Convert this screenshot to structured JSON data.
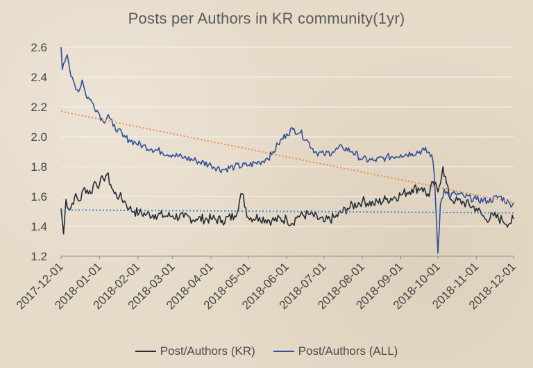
{
  "chart_data": {
    "type": "line",
    "title": "Posts per Authors in KR community(1yr)",
    "xlabel": "",
    "ylabel": "",
    "ylim": [
      1.2,
      2.6
    ],
    "yticks": [
      "1.2",
      "1.4",
      "1.6",
      "1.8",
      "2.0",
      "2.2",
      "2.4",
      "2.6"
    ],
    "xlim": [
      "2017-12-01",
      "2018-12-01"
    ],
    "xticks": [
      "2017-12-01",
      "2018-01-01",
      "2018-02-01",
      "2018-03-01",
      "2018-04-01",
      "2018-05-01",
      "2018-06-01",
      "2018-07-01",
      "2018-08-01",
      "2018-09-01",
      "2018-10-01",
      "2018-11-01",
      "2018-12-01"
    ],
    "grid": true,
    "legend_position": "bottom",
    "colors": {
      "kr": "#1f2a36",
      "all": "#2f4f9a",
      "kr_trend": "#3a86d4",
      "all_trend": "#e8894a",
      "grid": "#f4efe6",
      "axis": "#8a8a8a"
    },
    "series": [
      {
        "name": "Post/Authors (KR)",
        "color": "#1f2a36",
        "x": [
          "2017-12-01",
          "2017-12-03",
          "2017-12-05",
          "2017-12-08",
          "2017-12-12",
          "2017-12-16",
          "2017-12-20",
          "2017-12-25",
          "2017-12-28",
          "2018-01-01",
          "2018-01-04",
          "2018-01-07",
          "2018-01-10",
          "2018-01-13",
          "2018-01-17",
          "2018-01-21",
          "2018-01-25",
          "2018-01-29",
          "2018-02-02",
          "2018-02-08",
          "2018-02-15",
          "2018-02-22",
          "2018-03-01",
          "2018-03-10",
          "2018-03-20",
          "2018-04-01",
          "2018-04-10",
          "2018-04-20",
          "2018-04-26",
          "2018-05-01",
          "2018-05-10",
          "2018-05-20",
          "2018-06-01",
          "2018-06-05",
          "2018-06-10",
          "2018-06-20",
          "2018-07-01",
          "2018-07-10",
          "2018-07-20",
          "2018-08-01",
          "2018-08-10",
          "2018-08-20",
          "2018-09-01",
          "2018-09-10",
          "2018-09-18",
          "2018-09-24",
          "2018-09-27",
          "2018-10-01",
          "2018-10-05",
          "2018-10-10",
          "2018-10-15",
          "2018-10-22",
          "2018-11-01",
          "2018-11-08",
          "2018-11-15",
          "2018-11-22",
          "2018-11-28",
          "2018-12-01"
        ],
        "y": [
          1.52,
          1.35,
          1.58,
          1.51,
          1.6,
          1.57,
          1.66,
          1.62,
          1.7,
          1.68,
          1.72,
          1.75,
          1.68,
          1.62,
          1.6,
          1.57,
          1.52,
          1.5,
          1.49,
          1.48,
          1.48,
          1.47,
          1.47,
          1.46,
          1.45,
          1.45,
          1.44,
          1.47,
          1.62,
          1.46,
          1.46,
          1.44,
          1.45,
          1.42,
          1.47,
          1.48,
          1.43,
          1.46,
          1.52,
          1.57,
          1.55,
          1.58,
          1.61,
          1.65,
          1.66,
          1.6,
          1.7,
          1.63,
          1.8,
          1.6,
          1.57,
          1.56,
          1.52,
          1.45,
          1.47,
          1.44,
          1.42,
          1.45
        ]
      },
      {
        "name": "Post/Authors (ALL)",
        "color": "#2f4f9a",
        "x": [
          "2017-12-01",
          "2017-12-02",
          "2017-12-04",
          "2017-12-06",
          "2017-12-08",
          "2017-12-10",
          "2017-12-12",
          "2017-12-15",
          "2017-12-18",
          "2017-12-21",
          "2017-12-24",
          "2017-12-27",
          "2018-01-01",
          "2018-01-04",
          "2018-01-08",
          "2018-01-12",
          "2018-01-16",
          "2018-01-20",
          "2018-01-25",
          "2018-01-30",
          "2018-02-05",
          "2018-02-12",
          "2018-02-20",
          "2018-03-01",
          "2018-03-10",
          "2018-03-20",
          "2018-04-01",
          "2018-04-10",
          "2018-04-20",
          "2018-05-01",
          "2018-05-10",
          "2018-05-15",
          "2018-05-20",
          "2018-05-25",
          "2018-06-01",
          "2018-06-06",
          "2018-06-12",
          "2018-06-18",
          "2018-06-24",
          "2018-07-01",
          "2018-07-08",
          "2018-07-16",
          "2018-07-24",
          "2018-08-01",
          "2018-08-10",
          "2018-08-20",
          "2018-09-01",
          "2018-09-10",
          "2018-09-20",
          "2018-09-26",
          "2018-09-28",
          "2018-09-30",
          "2018-10-01",
          "2018-10-03",
          "2018-10-06",
          "2018-10-10",
          "2018-10-15",
          "2018-10-22",
          "2018-11-01",
          "2018-11-10",
          "2018-11-20",
          "2018-11-28",
          "2018-12-01"
        ],
        "y": [
          2.6,
          2.45,
          2.5,
          2.55,
          2.45,
          2.4,
          2.35,
          2.3,
          2.38,
          2.28,
          2.25,
          2.22,
          2.15,
          2.1,
          2.15,
          2.07,
          2.05,
          2.0,
          1.98,
          1.96,
          1.94,
          1.92,
          1.9,
          1.88,
          1.86,
          1.84,
          1.81,
          1.78,
          1.8,
          1.81,
          1.83,
          1.85,
          1.88,
          1.95,
          2.02,
          2.05,
          2.03,
          1.97,
          1.9,
          1.88,
          1.9,
          1.93,
          1.9,
          1.85,
          1.84,
          1.86,
          1.88,
          1.89,
          1.91,
          1.88,
          1.75,
          1.4,
          1.22,
          1.55,
          1.65,
          1.6,
          1.62,
          1.6,
          1.58,
          1.57,
          1.6,
          1.55,
          1.56
        ]
      }
    ],
    "trendlines": [
      {
        "of": "Post/Authors (ALL)",
        "x": [
          "2017-12-01",
          "2018-12-01"
        ],
        "y": [
          2.17,
          1.56
        ],
        "color": "#e8894a"
      },
      {
        "of": "Post/Authors (KR)",
        "x": [
          "2017-12-01",
          "2018-12-01"
        ],
        "y": [
          1.51,
          1.49
        ],
        "color": "#3a86d4"
      }
    ]
  }
}
